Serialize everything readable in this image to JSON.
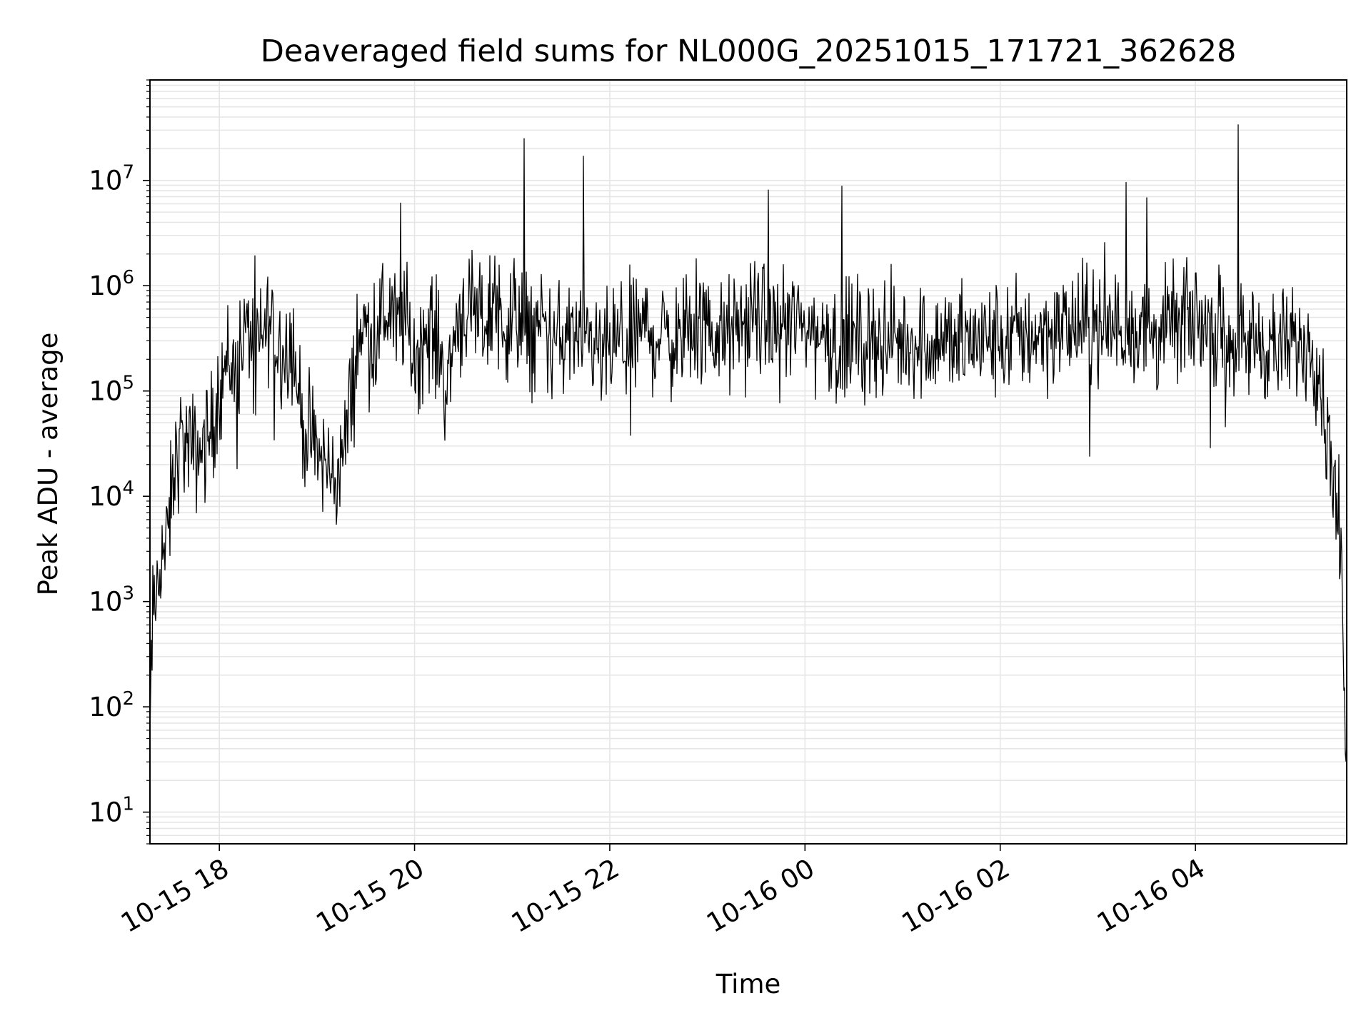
{
  "chart_data": {
    "type": "line",
    "title": "Deaveraged field sums for NL000G_20251015_171721_362628",
    "xlabel": "Time",
    "ylabel": "Peak ADU - average",
    "yscale": "log",
    "ylim": [
      5,
      90000000
    ],
    "xlim": [
      "2025-10-15 17:17:21",
      "2025-10-16 05:33:00"
    ],
    "grid": true,
    "grid_minor": true,
    "line_color": "#000000",
    "grid_color": "#e6e6e6",
    "x_ticks": [
      {
        "value": "2025-10-15 18:00",
        "label": "10-15 18"
      },
      {
        "value": "2025-10-15 20:00",
        "label": "10-15 20"
      },
      {
        "value": "2025-10-15 22:00",
        "label": "10-15 22"
      },
      {
        "value": "2025-10-16 00:00",
        "label": "10-16 00"
      },
      {
        "value": "2025-10-16 02:00",
        "label": "10-16 02"
      },
      {
        "value": "2025-10-16 04:00",
        "label": "10-16 04"
      }
    ],
    "y_ticks": [
      {
        "value": 10,
        "base": "10",
        "exp": "1"
      },
      {
        "value": 100,
        "base": "10",
        "exp": "2"
      },
      {
        "value": 1000,
        "base": "10",
        "exp": "3"
      },
      {
        "value": 10000,
        "base": "10",
        "exp": "4"
      },
      {
        "value": 100000,
        "base": "10",
        "exp": "5"
      },
      {
        "value": 1000000,
        "base": "10",
        "exp": "6"
      },
      {
        "value": 10000000,
        "base": "10",
        "exp": "7"
      }
    ],
    "series": [
      {
        "x": [
          "2025-10-15 17:17:21",
          "2025-10-15 17:18:00",
          "2025-10-15 17:19:00",
          "2025-10-15 17:21:00",
          "2025-10-15 17:23:00",
          "2025-10-15 17:25:00",
          "2025-10-15 17:27:00",
          "2025-10-15 17:30:00",
          "2025-10-15 17:33:00",
          "2025-10-15 17:36:00",
          "2025-10-15 17:40:00",
          "2025-10-15 17:45:00",
          "2025-10-15 17:50:00",
          "2025-10-15 17:55:00",
          "2025-10-15 18:00:00",
          "2025-10-15 18:05:00",
          "2025-10-15 18:10:00",
          "2025-10-15 18:15:00",
          "2025-10-15 18:20:00",
          "2025-10-15 18:25:00",
          "2025-10-15 18:30:00",
          "2025-10-15 18:35:00",
          "2025-10-15 18:40:00",
          "2025-10-15 18:45:00",
          "2025-10-15 18:50:00",
          "2025-10-15 18:55:00",
          "2025-10-15 19:00:00",
          "2025-10-15 19:05:00",
          "2025-10-15 19:10:00",
          "2025-10-15 19:15:00",
          "2025-10-15 19:20:00",
          "2025-10-15 19:25:00",
          "2025-10-15 19:30:00",
          "2025-10-15 19:35:00",
          "2025-10-15 19:40:00",
          "2025-10-15 19:45:00",
          "2025-10-15 19:50:00",
          "2025-10-15 19:55:00",
          "2025-10-15 20:00:00",
          "2025-10-15 20:05:00",
          "2025-10-15 20:10:00",
          "2025-10-15 20:15:00",
          "2025-10-15 20:20:00",
          "2025-10-15 20:25:00",
          "2025-10-15 20:30:00",
          "2025-10-15 20:35:00",
          "2025-10-15 20:40:00",
          "2025-10-15 20:45:00",
          "2025-10-15 20:50:00",
          "2025-10-15 20:55:00",
          "2025-10-15 21:00:00",
          "2025-10-15 21:05:00",
          "2025-10-15 21:10:00",
          "2025-10-15 21:15:00",
          "2025-10-15 21:20:00",
          "2025-10-15 21:25:00",
          "2025-10-15 21:30:00",
          "2025-10-15 21:35:00",
          "2025-10-15 21:40:00",
          "2025-10-15 21:45:00",
          "2025-10-15 21:50:00",
          "2025-10-15 21:55:00",
          "2025-10-15 22:00:00",
          "2025-10-15 22:10:00",
          "2025-10-15 22:20:00",
          "2025-10-15 22:30:00",
          "2025-10-15 22:40:00",
          "2025-10-15 22:50:00",
          "2025-10-15 23:00:00",
          "2025-10-15 23:10:00",
          "2025-10-15 23:20:00",
          "2025-10-15 23:30:00",
          "2025-10-15 23:40:00",
          "2025-10-15 23:50:00",
          "2025-10-16 00:00:00",
          "2025-10-16 00:20:00",
          "2025-10-16 00:40:00",
          "2025-10-16 01:00:00",
          "2025-10-16 01:20:00",
          "2025-10-16 01:40:00",
          "2025-10-16 02:00:00",
          "2025-10-16 02:20:00",
          "2025-10-16 02:40:00",
          "2025-10-16 03:00:00",
          "2025-10-16 03:20:00",
          "2025-10-16 03:40:00",
          "2025-10-16 04:00:00",
          "2025-10-16 04:10:00",
          "2025-10-16 04:20:00",
          "2025-10-16 04:30:00",
          "2025-10-16 04:40:00",
          "2025-10-16 04:50:00",
          "2025-10-16 05:00:00",
          "2025-10-16 05:05:00",
          "2025-10-16 05:10:00",
          "2025-10-16 05:15:00",
          "2025-10-16 05:20:00",
          "2025-10-16 05:25:00",
          "2025-10-16 05:28:00",
          "2025-10-16 05:30:00",
          "2025-10-16 05:31:00",
          "2025-10-16 05:32:00",
          "2025-10-16 05:33:00"
        ],
        "y": [
          30,
          200,
          600,
          1000,
          2000,
          3500,
          2500,
          8000,
          20000,
          35000,
          30000,
          25000,
          30000,
          40000,
          110000,
          200000,
          150000,
          300000,
          400000,
          250000,
          500000,
          300000,
          250000,
          300000,
          60000,
          35000,
          25000,
          20000,
          15000,
          20000,
          60000,
          300000,
          400000,
          300000,
          500000,
          600000,
          400000,
          500000,
          200000,
          300000,
          400000,
          250000,
          100000,
          400000,
          600000,
          500000,
          400000,
          500000,
          600000,
          400000,
          500000,
          500000,
          400000,
          350000,
          400000,
          300000,
          300000,
          350000,
          300000,
          250000,
          250000,
          200000,
          250000,
          300000,
          400000,
          350000,
          300000,
          350000,
          400000,
          300000,
          400000,
          500000,
          400000,
          450000,
          400000,
          300000,
          300000,
          300000,
          300000,
          300000,
          300000,
          350000,
          400000,
          400000,
          400000,
          350000,
          500000,
          400000,
          350000,
          300000,
          300000,
          250000,
          250000,
          300000,
          300000,
          200000,
          50000,
          20000,
          5000,
          1500,
          300,
          50,
          20
        ]
      }
    ]
  }
}
